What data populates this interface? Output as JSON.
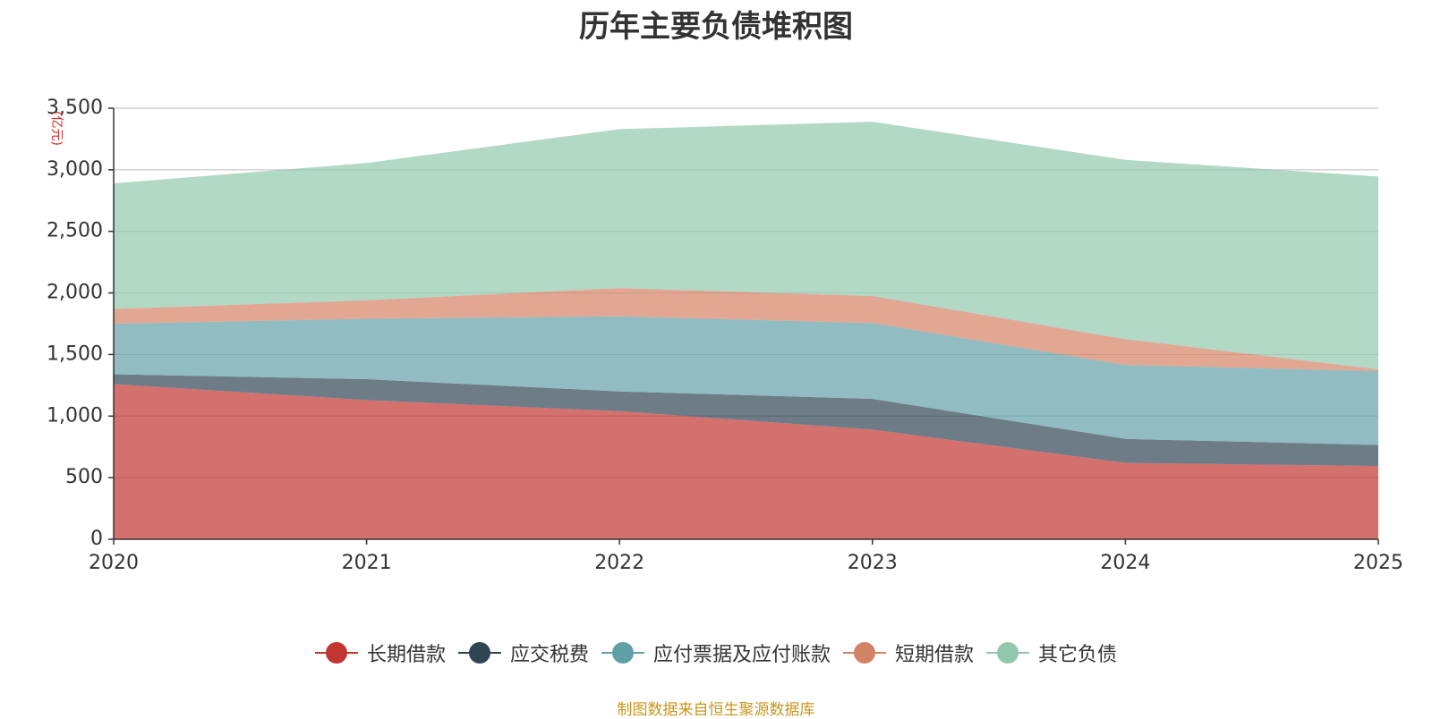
{
  "chart_data": {
    "type": "area",
    "stacked": true,
    "title": "历年主要负债堆积图",
    "unit_label": "(亿元)",
    "x": [
      "2020",
      "2021",
      "2022",
      "2023",
      "2024",
      "2025"
    ],
    "ylim": [
      0,
      3500
    ],
    "yticks": [
      0,
      500,
      1000,
      1500,
      2000,
      2500,
      3000,
      3500
    ],
    "ytick_labels": [
      "0",
      "500",
      "1,000",
      "1,500",
      "2,000",
      "2,500",
      "3,000",
      "3,500"
    ],
    "grid": true,
    "legend_position": "bottom-center",
    "series": [
      {
        "name": "长期借款",
        "color": "#c23531",
        "values": [
          1260,
          1130,
          1040,
          890,
          620,
          595
        ]
      },
      {
        "name": "应交税费",
        "color": "#2f4554",
        "values": [
          80,
          170,
          160,
          250,
          195,
          170
        ]
      },
      {
        "name": "应付票据及应付账款",
        "color": "#61a0a8",
        "values": [
          410,
          490,
          610,
          615,
          600,
          600
        ]
      },
      {
        "name": "短期借款",
        "color": "#d48265",
        "values": [
          120,
          150,
          230,
          220,
          210,
          15
        ]
      },
      {
        "name": "其它负债",
        "color": "#91c7ae",
        "values": [
          1020,
          1115,
          1290,
          1415,
          1455,
          1565
        ]
      }
    ],
    "source_note": "制图数据来自恒生聚源数据库"
  }
}
